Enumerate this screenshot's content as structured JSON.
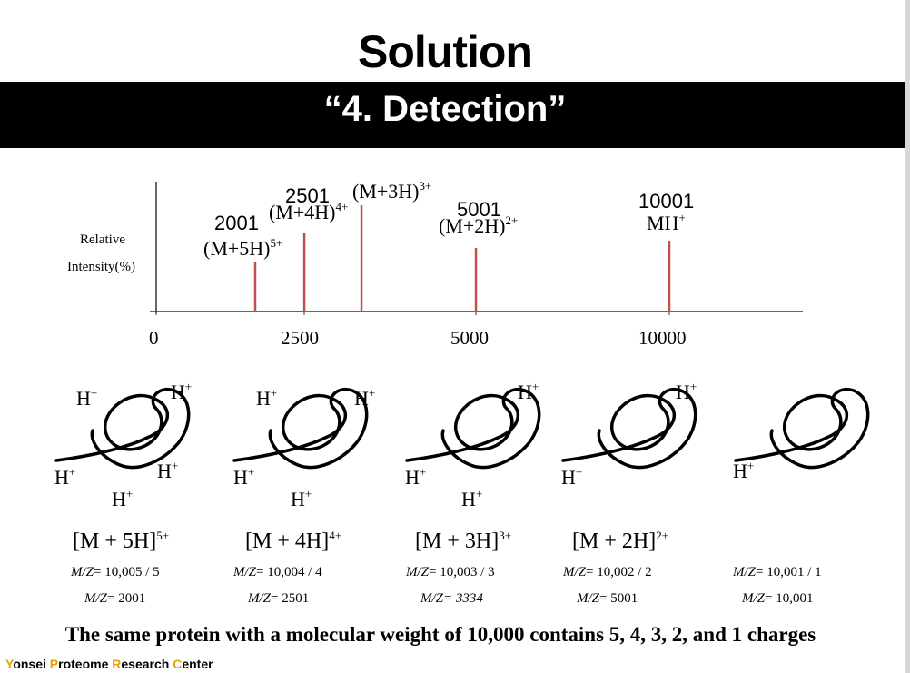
{
  "title": "Solution",
  "banner": "“4. Detection”",
  "chart_data": {
    "type": "bar",
    "ylabel_line1": "Relative",
    "ylabel_line2": "Intensity(%)",
    "x_ticks": [
      "0",
      "2500",
      "5000",
      "10000"
    ],
    "peaks": [
      {
        "mass": "2001",
        "ion": "(M+5H)",
        "charge": "5+",
        "x": 2001,
        "height": 54
      },
      {
        "mass": "2501",
        "ion": "(M+4H)",
        "charge": "4+",
        "x": 2501,
        "height": 86
      },
      {
        "mass": "",
        "ion": "(M+3H)",
        "charge": "3+",
        "x": 3334,
        "height": 117
      },
      {
        "mass": "5001",
        "ion": "(M+2H)",
        "charge": "2+",
        "x": 5001,
        "height": 70
      },
      {
        "mass": "10001",
        "ion": "MH",
        "charge": "+",
        "x": 10001,
        "height": 78
      }
    ],
    "bar_color": "#c0504d"
  },
  "hplus": {
    "base": "H",
    "sup": "+"
  },
  "formulas": [
    {
      "base": "[M + 5H]",
      "charge": "5+",
      "mz_line1": "= 10,005 / 5",
      "mz_line2": "= 2001"
    },
    {
      "base": "[M + 4H]",
      "charge": "4+",
      "mz_line1": "= 10,004 / 4",
      "mz_line2": "= 2501"
    },
    {
      "base": "[M + 3H]",
      "charge": "3+",
      "mz_line1": "= 10,003 / 3",
      "mz_line2": "= 3334"
    },
    {
      "base": "[M + 2H]",
      "charge": "2+",
      "mz_line1": "= 10,002 / 2",
      "mz_line2": "= 5001"
    },
    {
      "base": "",
      "charge": "",
      "mz_line1": "= 10,001 / 1",
      "mz_line2": "= 10,001"
    }
  ],
  "mz_label": "M/Z",
  "footer": "The same protein with a molecular weight of 10,000 contains 5, 4, 3, 2, and 1 charges",
  "brand": {
    "y1": "Y",
    "w1": "onsei ",
    "y2": "P",
    "w2": "roteome ",
    "y3": "R",
    "w3": "esearch ",
    "y4": "C",
    "w4": "enter"
  }
}
